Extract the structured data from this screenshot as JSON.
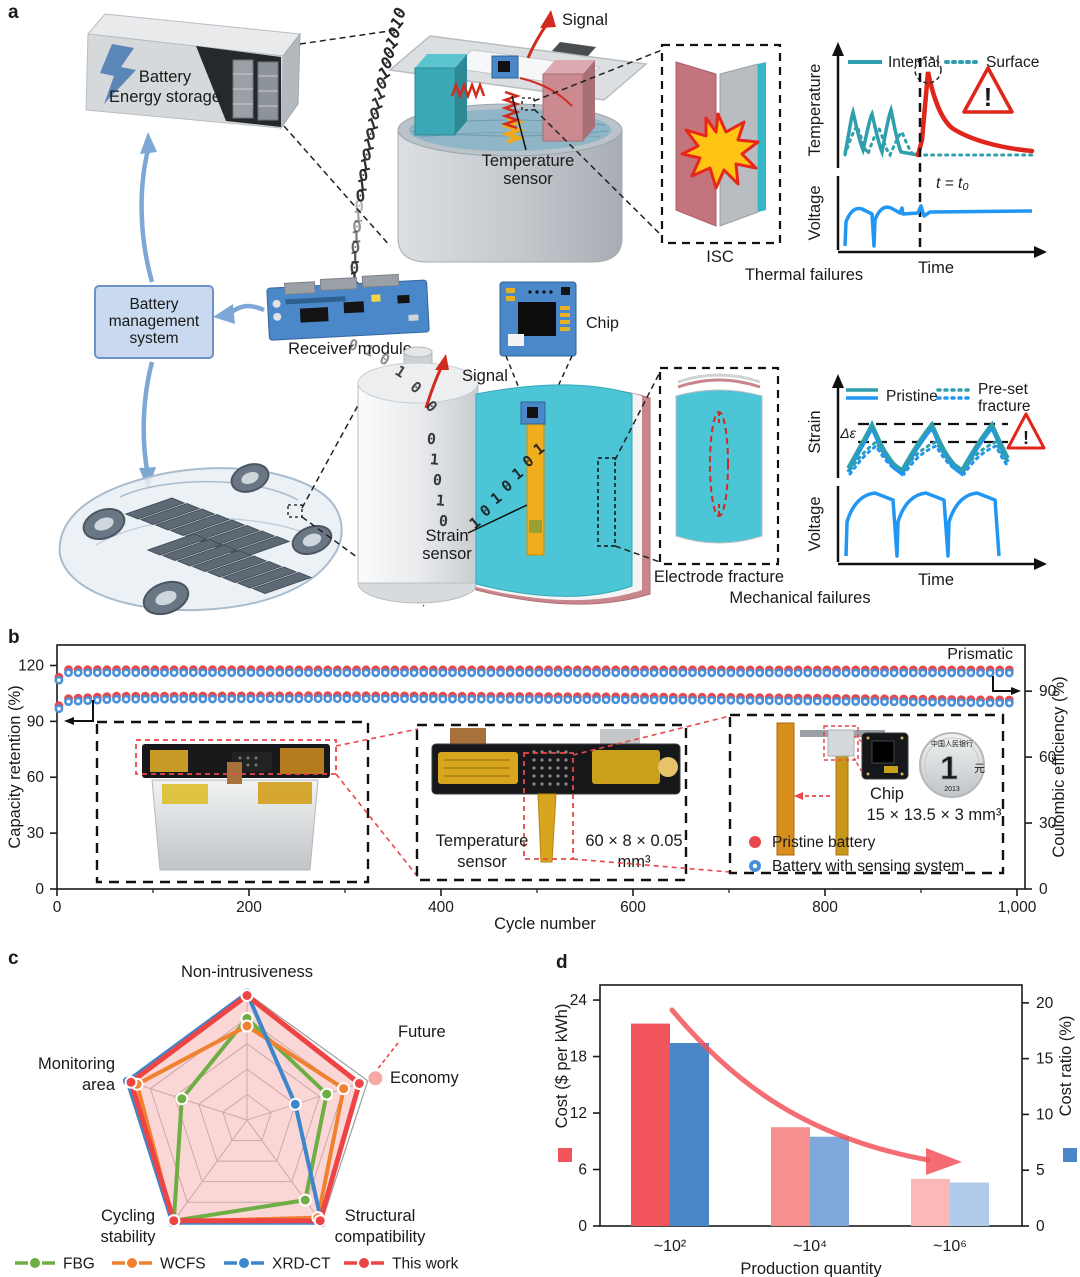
{
  "panel_labels": {
    "a": "a",
    "b": "b",
    "c": "c",
    "d": "d"
  },
  "panel_a": {
    "energy_storage_line1": "Battery",
    "energy_storage_line2": "Energy storage",
    "signal_top": "Signal",
    "temp_sensor_line1": "Temperature",
    "temp_sensor_line2": "sensor",
    "isc_label": "ISC",
    "thermal_caption": "Thermal failures",
    "thermal_plot": {
      "legend_internal": "Internal",
      "legend_surface": "Surface",
      "ylabel_top": "Temperature",
      "ylabel_bottom": "Voltage",
      "xlabel": "Time",
      "event_label": "t = t₀"
    },
    "bms_line1": "Battery",
    "bms_line2": "management",
    "bms_line3": "system",
    "receiver_label": "Receiver module",
    "chip_label": "Chip",
    "signal_mid": "Signal",
    "strain_line1": "Strain",
    "strain_line2": "sensor",
    "electrode_fracture_label": "Electrode fracture",
    "mech_caption": "Mechanical failures",
    "mech_plot": {
      "legend_pristine": "Pristine",
      "legend_preset_line1": "Pre-set",
      "legend_preset_line2": "fracture",
      "ylabel_top": "Strain",
      "ylabel_bottom": "Voltage",
      "xlabel": "Time",
      "delta_label": "Δε"
    },
    "binary_top": "0101001011010101010010101010",
    "binary_receiver_to_cell": "010100",
    "binary_on_cell": "01010",
    "binary_near_strain": "1010101",
    "colors": {
      "teal": "#2f9fae",
      "blue": "#2196f3",
      "red": "#e0261b",
      "binary_red": "#c0392b",
      "binary_blue": "#3a6fc4"
    }
  },
  "chart_data": [
    {
      "id": "cycling",
      "type": "scatter",
      "corner_label": "Prismatic",
      "xlabel": "Cycle number",
      "ylabel_left": "Capacity retention (%)",
      "ylabel_right": "Coulombic efficiency (%)",
      "xlim": [
        0,
        1050
      ],
      "xticks": [
        0,
        200,
        400,
        600,
        800,
        1000
      ],
      "xtick_labels": [
        "0",
        "200",
        "400",
        "600",
        "800",
        "1,000"
      ],
      "xticks_minor": [
        100,
        300,
        500,
        700,
        900
      ],
      "yticks_left": [
        0,
        30,
        60,
        90,
        120
      ],
      "yticks_right": [
        0,
        30,
        60,
        90
      ],
      "series": [
        {
          "name": "Pristine battery",
          "color": "#e8474b"
        },
        {
          "name": "Battery with sensing system",
          "color": "#4a90d9"
        }
      ],
      "capacity_retention_trend": [
        [
          2,
          96.8
        ],
        [
          12,
          100.6
        ],
        [
          60,
          101.9
        ],
        [
          300,
          102.2
        ],
        [
          700,
          101.3
        ],
        [
          1000,
          99.8
        ]
      ],
      "coulombic_efficiency_trend": [
        [
          2,
          95
        ],
        [
          12,
          98.4
        ],
        [
          1000,
          98.3
        ]
      ],
      "point_interval_cycles": 10,
      "insets": {
        "temp_sensor_line1": "Temperature",
        "temp_sensor_line2": "sensor",
        "sensor_dims_line1": "60 × 8 × 0.05",
        "sensor_dims_line2": "mm³",
        "chip_label": "Chip",
        "chip_dims": "15 × 13.5 × 3 mm³",
        "coin_value": "1",
        "coin_yuan": "元",
        "coin_bank": "中国人民银行",
        "coin_year": "2013",
        "legend": [
          {
            "label": "Pristine battery",
            "color": "#e8474b"
          },
          {
            "label": "Battery with sensing system",
            "color": "#4a90d9"
          }
        ]
      }
    },
    {
      "id": "technique-comparison",
      "type": "radar",
      "max_value": 5,
      "rings": 5,
      "axes": [
        {
          "lines": [
            "Non-intrusiveness"
          ]
        },
        {
          "lines": [
            "Economy"
          ],
          "future_label": "Future"
        },
        {
          "lines": [
            "Structural",
            "compatibility"
          ]
        },
        {
          "lines": [
            "Cycling",
            "stability"
          ]
        },
        {
          "lines": [
            "Monitoring",
            "area"
          ]
        }
      ],
      "series": [
        {
          "name": "FBG",
          "color": "#6fae45",
          "values": [
            4.0,
            3.3,
            3.9,
            4.9,
            2.7
          ]
        },
        {
          "name": "WCFS",
          "color": "#f08130",
          "values": [
            3.7,
            4.0,
            4.75,
            4.95,
            4.55
          ]
        },
        {
          "name": "XRD-CT",
          "color": "#3e86cb",
          "values": [
            5.0,
            2.0,
            5.0,
            5.0,
            4.95
          ]
        },
        {
          "name": "This work",
          "color": "#ee4544",
          "values": [
            4.9,
            4.65,
            4.9,
            4.9,
            4.8
          ],
          "filled": true
        }
      ],
      "future_point": {
        "axis_index": 1,
        "value": 5,
        "color": "#f5a8a6"
      }
    },
    {
      "id": "cost",
      "type": "bar",
      "xlabel": "Production quantity",
      "categories": [
        "~10²",
        "~10⁴",
        "~10⁶"
      ],
      "ylabel_left": "Cost ($ per kWh)",
      "ylabel_right": "Cost ratio (%)",
      "yticks_left": [
        0,
        6,
        12,
        18,
        24
      ],
      "yticks_right": [
        0,
        5,
        10,
        15,
        20
      ],
      "ylim_left": [
        0,
        25.6
      ],
      "ylim_right": [
        0,
        21.6
      ],
      "series": [
        {
          "name": "Cost ($ per kWh)",
          "axis": "left",
          "values": [
            21.5,
            10.5,
            5.0
          ],
          "bar_colors": [
            "#f2545b",
            "#f78f8f",
            "#fab9b7"
          ],
          "legend_color": "#f2545b"
        },
        {
          "name": "Cost ratio (%)",
          "axis": "right",
          "values": [
            16.4,
            8.0,
            3.9
          ],
          "bar_colors": [
            "#4a87c9",
            "#7ea9da",
            "#b0cbe9"
          ],
          "legend_color": "#4a87c9"
        }
      ],
      "trend_arrow_color": "#f2545b"
    }
  ]
}
